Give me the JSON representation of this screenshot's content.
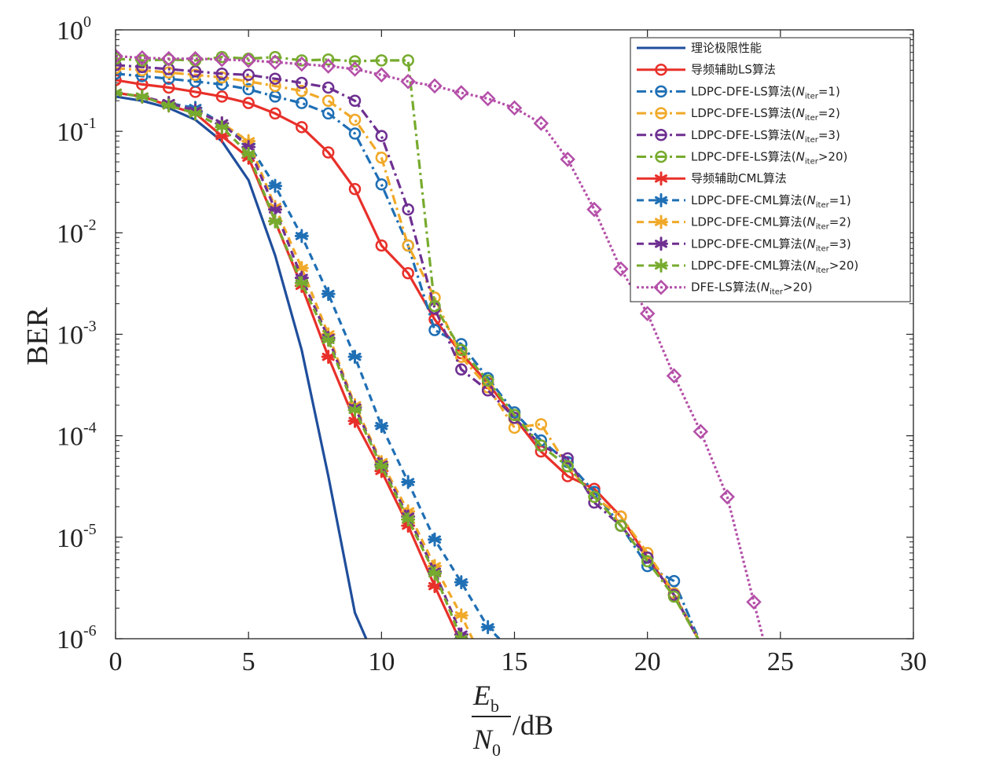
{
  "chart_data": {
    "type": "line",
    "title": "",
    "xlabel": {
      "numerator_main": "E",
      "numerator_sub": "b",
      "denominator_main": "N",
      "denominator_sub": "0",
      "suffix": "/dB"
    },
    "ylabel": "BER",
    "xlim": [
      0,
      30
    ],
    "ylim": [
      1e-06,
      1
    ],
    "y_scale": "log",
    "x_ticks": [
      0,
      5,
      10,
      15,
      20,
      25,
      30
    ],
    "y_ticks": [
      {
        "base": "10",
        "exp": "0"
      },
      {
        "base": "10",
        "exp": "-1"
      },
      {
        "base": "10",
        "exp": "-2"
      },
      {
        "base": "10",
        "exp": "-3"
      },
      {
        "base": "10",
        "exp": "-4"
      },
      {
        "base": "10",
        "exp": "-5"
      },
      {
        "base": "10",
        "exp": "-6"
      }
    ],
    "grid": false,
    "legend_position": "top-right",
    "series": [
      {
        "name": "理论极限性能",
        "color": "#1f4e9c",
        "dash": "solid",
        "marker": "none",
        "x": [
          0,
          1,
          2,
          3,
          4,
          5,
          6,
          7,
          8,
          9,
          9.5
        ],
        "y": [
          0.22,
          0.2,
          0.17,
          0.13,
          0.08,
          0.033,
          0.006,
          0.0007,
          4e-05,
          1.8e-06,
          9e-07
        ]
      },
      {
        "name": "导频辅助LS算法",
        "color": "#e8302a",
        "dash": "solid",
        "marker": "circle",
        "x": [
          0,
          1,
          2,
          3,
          4,
          5,
          6,
          7,
          8,
          9,
          10,
          11,
          12,
          13,
          14,
          15,
          16,
          17,
          18,
          19,
          20,
          21,
          22
        ],
        "y": [
          0.32,
          0.29,
          0.27,
          0.245,
          0.22,
          0.19,
          0.15,
          0.11,
          0.062,
          0.027,
          0.0075,
          0.004,
          0.0014,
          0.00065,
          0.00033,
          0.00015,
          7e-05,
          4e-05,
          3e-05,
          1.6e-05,
          6.3e-06,
          2.7e-06,
          9e-07
        ]
      },
      {
        "name": "LDPC-DFE-LS算法(N_iter=1)",
        "color": "#1f6fb5",
        "dash": "dashdot",
        "marker": "circle",
        "x": [
          0,
          1,
          2,
          3,
          4,
          5,
          6,
          7,
          8,
          9,
          10,
          11,
          12,
          13,
          14,
          15,
          16,
          17,
          18,
          19,
          20,
          21,
          22
        ],
        "y": [
          0.37,
          0.35,
          0.33,
          0.31,
          0.29,
          0.26,
          0.22,
          0.19,
          0.15,
          0.095,
          0.03,
          0.0075,
          0.0011,
          0.0008,
          0.00037,
          0.00017,
          9e-05,
          5.5e-05,
          2.8e-05,
          1.3e-05,
          5.2e-06,
          3.7e-06,
          9e-07
        ]
      },
      {
        "name": "LDPC-DFE-LS算法(N_iter=2)",
        "color": "#f0a929",
        "dash": "dashdot",
        "marker": "circle",
        "x": [
          0,
          1,
          2,
          3,
          4,
          5,
          6,
          7,
          8,
          9,
          10,
          11,
          12,
          13,
          14,
          15,
          16,
          17,
          18,
          19,
          20,
          21,
          22
        ],
        "y": [
          0.42,
          0.4,
          0.38,
          0.36,
          0.34,
          0.31,
          0.28,
          0.25,
          0.2,
          0.13,
          0.055,
          0.0075,
          0.0023,
          0.0006,
          0.0003,
          0.00012,
          0.00013,
          5e-05,
          2.5e-05,
          1.6e-05,
          7e-06,
          2.8e-06,
          9e-07
        ]
      },
      {
        "name": "LDPC-DFE-LS算法(N_iter=3)",
        "color": "#6e2f91",
        "dash": "dashdot",
        "marker": "circle",
        "x": [
          0,
          1,
          2,
          3,
          4,
          5,
          6,
          7,
          8,
          9,
          10,
          11,
          12,
          13,
          14,
          15,
          16,
          17,
          18,
          19,
          20,
          21,
          22
        ],
        "y": [
          0.45,
          0.43,
          0.41,
          0.39,
          0.37,
          0.36,
          0.33,
          0.3,
          0.27,
          0.2,
          0.09,
          0.017,
          0.0018,
          0.00045,
          0.00028,
          0.00015,
          8e-05,
          6e-05,
          2.2e-05,
          1.3e-05,
          6.3e-06,
          2.7e-06,
          9e-07
        ]
      },
      {
        "name": "LDPC-DFE-LS算法(N_iter>20)",
        "color": "#77ab2e",
        "dash": "dashdot",
        "marker": "circle",
        "x": [
          0,
          1,
          2,
          3,
          4,
          5,
          6,
          7,
          8,
          9,
          10,
          11,
          12,
          13,
          14,
          15,
          16,
          17,
          18,
          19,
          20,
          21,
          22
        ],
        "y": [
          0.52,
          0.5,
          0.51,
          0.5,
          0.54,
          0.52,
          0.54,
          0.5,
          0.51,
          0.49,
          0.5,
          0.5,
          0.0019,
          0.0007,
          0.00035,
          0.00016,
          8e-05,
          5e-05,
          2.5e-05,
          1.3e-05,
          5.8e-06,
          2.6e-06,
          9e-07
        ]
      },
      {
        "name": "导频辅助CML算法",
        "color": "#e8302a",
        "dash": "solid",
        "marker": "star",
        "x": [
          0,
          1,
          2,
          3,
          4,
          5,
          6,
          7,
          8,
          9,
          10,
          11,
          12,
          13
        ],
        "y": [
          0.24,
          0.22,
          0.18,
          0.15,
          0.09,
          0.055,
          0.013,
          0.003,
          0.0006,
          0.00014,
          4.5e-05,
          1.3e-05,
          3.3e-06,
          9e-07
        ]
      },
      {
        "name": "LDPC-DFE-CML算法(N_iter=1)",
        "color": "#1f6fb5",
        "dash": "dashed",
        "marker": "star",
        "x": [
          0,
          1,
          2,
          3,
          4,
          5,
          6,
          7,
          8,
          9,
          10,
          11,
          12,
          13,
          14,
          14.6
        ],
        "y": [
          0.24,
          0.22,
          0.19,
          0.17,
          0.12,
          0.075,
          0.029,
          0.0093,
          0.0025,
          0.0006,
          0.000125,
          3.5e-05,
          9.5e-06,
          3.6e-06,
          1.3e-06,
          9e-07
        ]
      },
      {
        "name": "LDPC-DFE-CML算法(N_iter=2)",
        "color": "#f0a929",
        "dash": "dashed",
        "marker": "star",
        "x": [
          0,
          1,
          2,
          3,
          4,
          5,
          6,
          7,
          8,
          9,
          10,
          11,
          12,
          13,
          13.5
        ],
        "y": [
          0.24,
          0.22,
          0.19,
          0.16,
          0.12,
          0.08,
          0.018,
          0.0045,
          0.001,
          0.0002,
          5.5e-05,
          1.8e-05,
          5.2e-06,
          1.7e-06,
          9e-07
        ]
      },
      {
        "name": "LDPC-DFE-CML算法(N_iter=3)",
        "color": "#6e2f91",
        "dash": "dashed",
        "marker": "star",
        "x": [
          0,
          1,
          2,
          3,
          4,
          5,
          6,
          7,
          8,
          9,
          10,
          11,
          12,
          13
        ],
        "y": [
          0.24,
          0.22,
          0.19,
          0.16,
          0.12,
          0.07,
          0.017,
          0.0036,
          0.00092,
          0.00019,
          5.2e-05,
          1.6e-05,
          4.6e-06,
          1.1e-06
        ]
      },
      {
        "name": "LDPC-DFE-CML算法(N_iter>20)",
        "color": "#77ab2e",
        "dash": "dashed",
        "marker": "star",
        "x": [
          0,
          1,
          2,
          3,
          4,
          5,
          6,
          7,
          8,
          9,
          10,
          11,
          12,
          13
        ],
        "y": [
          0.24,
          0.22,
          0.18,
          0.15,
          0.11,
          0.06,
          0.013,
          0.0032,
          0.00088,
          0.00018,
          5e-05,
          1.5e-05,
          4.4e-06,
          1e-06
        ]
      },
      {
        "name": "DFE-LS算法(N_iter>20)",
        "color": "#b44fa8",
        "dash": "dotted",
        "marker": "diamond",
        "x": [
          0,
          1,
          2,
          3,
          4,
          5,
          6,
          7,
          8,
          9,
          10,
          11,
          12,
          13,
          14,
          15,
          16,
          17,
          18,
          19,
          20,
          21,
          22,
          23,
          24,
          24.4
        ],
        "y": [
          0.55,
          0.53,
          0.52,
          0.52,
          0.51,
          0.5,
          0.48,
          0.46,
          0.44,
          0.41,
          0.36,
          0.31,
          0.28,
          0.24,
          0.21,
          0.17,
          0.12,
          0.053,
          0.017,
          0.0044,
          0.0016,
          0.00039,
          0.00011,
          2.5e-05,
          2.3e-06,
          9e-07
        ]
      }
    ]
  }
}
